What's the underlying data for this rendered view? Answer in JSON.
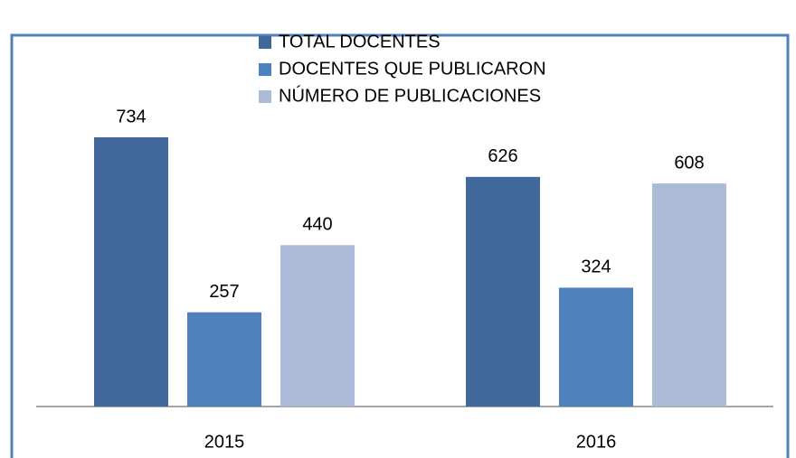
{
  "chart_data": {
    "type": "bar",
    "categories": [
      "2015",
      "2016"
    ],
    "series": [
      {
        "name": "TOTAL DOCENTES",
        "color": "#41689b",
        "values": [
          734,
          626
        ]
      },
      {
        "name": "DOCENTES QUE PUBLICARON",
        "color": "#4f81bd",
        "values": [
          257,
          324
        ]
      },
      {
        "name": "NÚMERO DE PUBLICACIONES",
        "color": "#aabad7",
        "values": [
          440,
          608
        ]
      }
    ],
    "legend": "top"
  }
}
